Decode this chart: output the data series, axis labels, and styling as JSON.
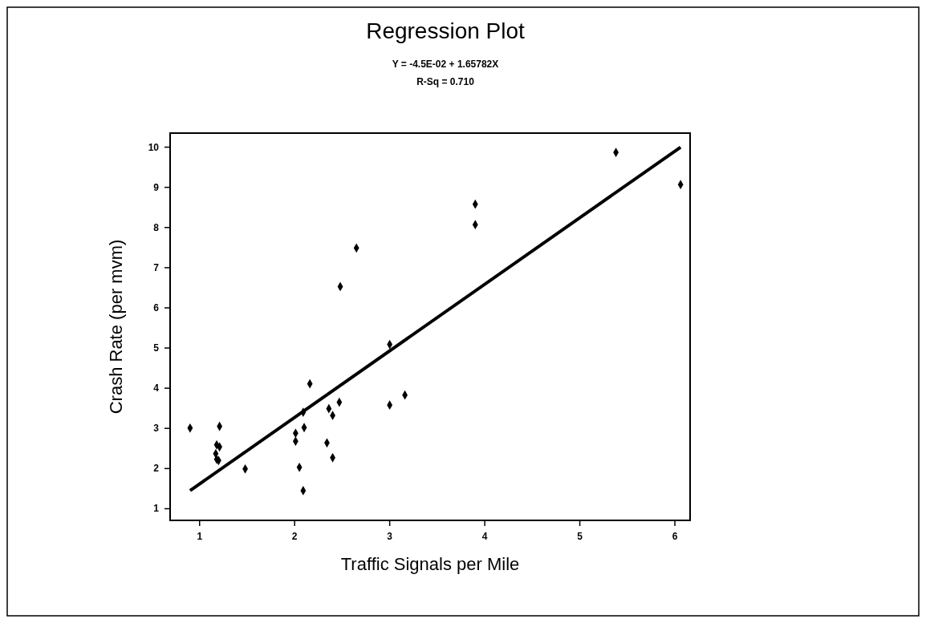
{
  "chart_data": {
    "type": "scatter",
    "title": "Regression Plot",
    "subtitle": "Y = -4.5E-02 + 1.65782X",
    "annotations": [
      "R-Sq = 0.710"
    ],
    "xlabel": "Traffic Signals per Mile",
    "ylabel": "Crash Rate (per mvm)",
    "xlim": [
      0.69,
      6.16
    ],
    "ylim": [
      0.71,
      10.35
    ],
    "xticks": [
      1,
      2,
      3,
      4,
      5,
      6
    ],
    "yticks": [
      1,
      2,
      3,
      4,
      5,
      6,
      7,
      8,
      9,
      10
    ],
    "grid": false,
    "series": [
      {
        "marker": "diamond",
        "color": "#000000",
        "x": [
          0.9,
          1.21,
          1.18,
          1.21,
          1.17,
          1.18,
          1.2,
          1.48,
          2.65,
          2.48,
          2.16,
          2.09,
          2.47,
          2.36,
          2.4,
          2.1,
          2.01,
          2.01,
          2.34,
          2.4,
          2.05,
          2.09,
          3.0,
          3.16,
          3.0,
          3.9,
          3.9,
          5.38,
          6.06
        ],
        "values": [
          3.01,
          3.05,
          2.59,
          2.54,
          2.37,
          2.23,
          2.2,
          1.99,
          7.49,
          6.53,
          4.11,
          3.4,
          3.65,
          3.49,
          3.32,
          3.02,
          2.88,
          2.68,
          2.64,
          2.27,
          2.03,
          1.45,
          3.58,
          3.83,
          5.09,
          8.58,
          8.07,
          9.87,
          9.07
        ]
      },
      {
        "type": "line",
        "color": "#000000",
        "line_style": "solid",
        "x": [
          0.9,
          6.06
        ],
        "values": [
          1.45,
          10.0
        ]
      }
    ]
  }
}
